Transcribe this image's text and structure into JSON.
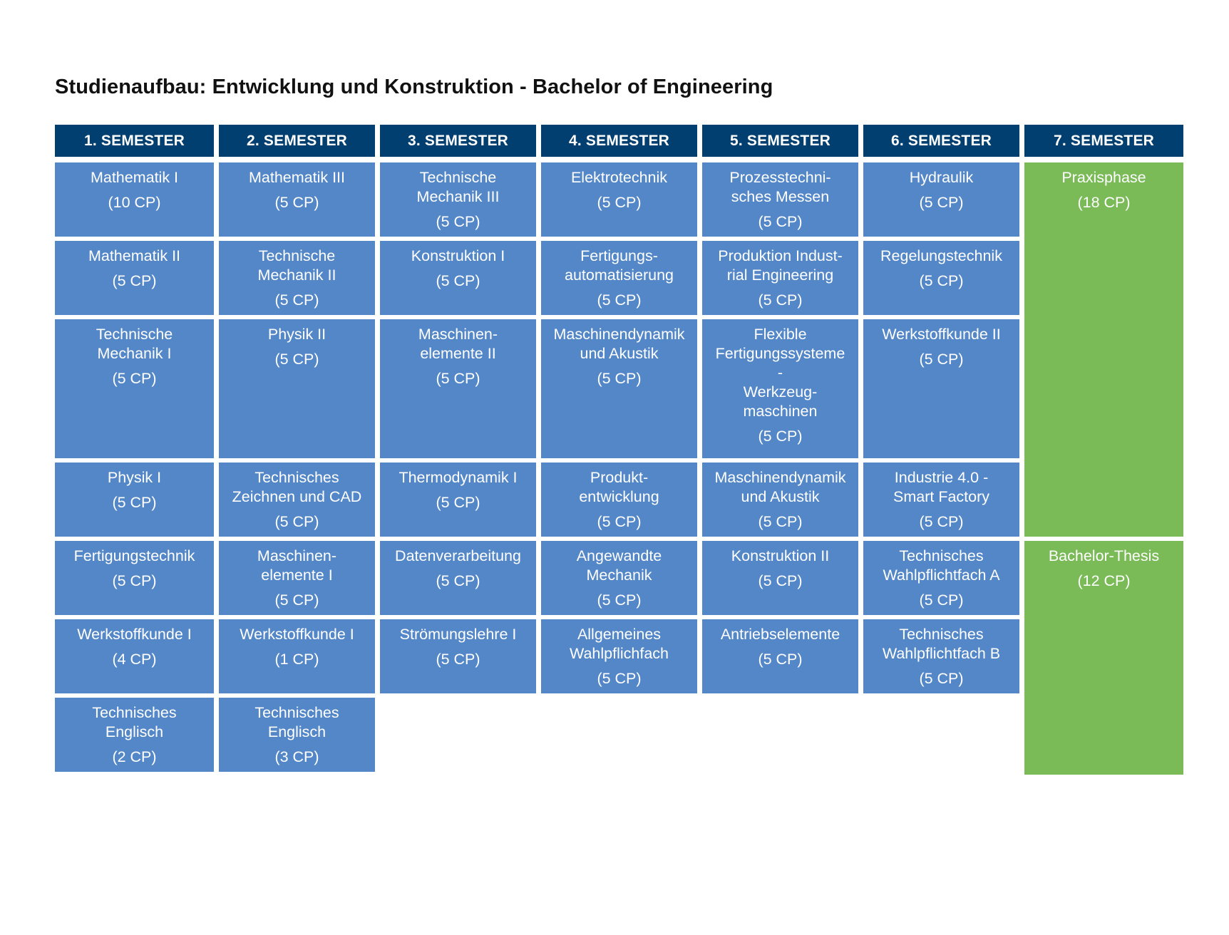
{
  "title": "Studienaufbau: Entwicklung und Konstruktion - Bachelor of Engineering",
  "colors": {
    "header": "#003f6f",
    "module": "#5487c7",
    "practice": "#7aba57",
    "text_on_cell": "#ffffff",
    "title": "#111111"
  },
  "semesters": [
    "1. SEMESTER",
    "2. SEMESTER",
    "3. SEMESTER",
    "4. SEMESTER",
    "5. SEMESTER",
    "6. SEMESTER",
    "7. SEMESTER"
  ],
  "modules": [
    [
      {
        "name": "Mathematik I",
        "cp": "(10 CP)"
      },
      {
        "name": "Mathematik II",
        "cp": "(5 CP)"
      },
      {
        "name": "Technische\nMechanik I",
        "cp": "(5 CP)"
      },
      {
        "name": "Physik I",
        "cp": "(5 CP)"
      },
      {
        "name": "Fertigungstechnik",
        "cp": "(5 CP)"
      },
      {
        "name": "Werkstoffkunde I",
        "cp": "(4 CP)"
      },
      {
        "name": "Technisches\nEnglisch",
        "cp": "(2 CP)"
      }
    ],
    [
      {
        "name": "Mathematik III",
        "cp": "(5 CP)"
      },
      {
        "name": "Technische\nMechanik II",
        "cp": "(5 CP)"
      },
      {
        "name": "Physik II",
        "cp": "(5 CP)"
      },
      {
        "name": "Technisches\nZeichnen und CAD",
        "cp": "(5 CP)"
      },
      {
        "name": "Maschinen-\nelemente I",
        "cp": "(5 CP)"
      },
      {
        "name": "Werkstoffkunde I",
        "cp": "(1 CP)"
      },
      {
        "name": "Technisches\nEnglisch",
        "cp": "(3 CP)"
      }
    ],
    [
      {
        "name": "Technische\nMechanik III",
        "cp": "(5 CP)"
      },
      {
        "name": "Konstruktion I",
        "cp": "(5 CP)"
      },
      {
        "name": "Maschinen-\nelemente II",
        "cp": "(5 CP)"
      },
      {
        "name": "Thermodynamik I",
        "cp": "(5 CP)"
      },
      {
        "name": "Datenverarbeitung",
        "cp": "(5 CP)"
      },
      {
        "name": "Strömungslehre I",
        "cp": "(5 CP)"
      }
    ],
    [
      {
        "name": "Elektrotechnik",
        "cp": "(5 CP)"
      },
      {
        "name": "Fertigungs-\nautomatisierung",
        "cp": "(5 CP)"
      },
      {
        "name": "Maschinendynamik\nund Akustik",
        "cp": "(5 CP)"
      },
      {
        "name": "Produkt-\nentwicklung",
        "cp": "(5 CP)"
      },
      {
        "name": "Angewandte\nMechanik",
        "cp": "(5 CP)"
      },
      {
        "name": "Allgemeines\nWahlpflichfach",
        "cp": "(5 CP)"
      }
    ],
    [
      {
        "name": "Prozesstechni-\nsches Messen",
        "cp": "(5 CP)"
      },
      {
        "name": "Produktion Indust-\nrial Engineering",
        "cp": "(5 CP)"
      },
      {
        "name": "Flexible\nFertigungssysteme\n-\nWerkzeug-\nmaschinen",
        "cp": "(5 CP)"
      },
      {
        "name": "Maschinendynamik\nund Akustik",
        "cp": "(5 CP)"
      },
      {
        "name": "Konstruktion II",
        "cp": "(5 CP)"
      },
      {
        "name": "Antriebselemente",
        "cp": "(5 CP)"
      }
    ],
    [
      {
        "name": "Hydraulik",
        "cp": "(5 CP)"
      },
      {
        "name": "Regelungstechnik",
        "cp": "(5 CP)"
      },
      {
        "name": "Werkstoffkunde II",
        "cp": "(5 CP)"
      },
      {
        "name": "Industrie 4.0 -\nSmart Factory",
        "cp": "(5 CP)"
      },
      {
        "name": "Technisches\nWahlpflichtfach A",
        "cp": "(5 CP)"
      },
      {
        "name": "Technisches\nWahlpflichtfach B",
        "cp": "(5 CP)"
      }
    ],
    [
      {
        "name": "Praxisphase",
        "cp": "(18 CP)"
      },
      {
        "name": "Bachelor-Thesis",
        "cp": "(12 CP)"
      }
    ]
  ]
}
